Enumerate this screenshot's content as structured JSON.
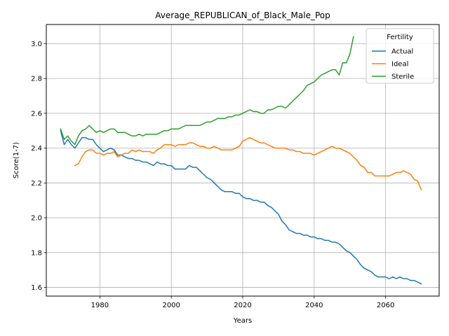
{
  "chart_data": {
    "type": "line",
    "title": "Average_REPUBLICAN_of_Black_Male_Pop",
    "xlabel": "Years",
    "ylabel": "Score(1-7)",
    "xlim": [
      1965,
      2075
    ],
    "ylim": [
      1.55,
      3.11
    ],
    "x_ticks": [
      1980,
      2000,
      2020,
      2040,
      2060
    ],
    "y_ticks": [
      1.6,
      1.8,
      2.0,
      2.2,
      2.4,
      2.6,
      2.8,
      3.0
    ],
    "x_tick_labels": [
      "1980",
      "2000",
      "2020",
      "2040",
      "2060"
    ],
    "y_tick_labels": [
      "1.6",
      "1.8",
      "2.0",
      "2.2",
      "2.4",
      "2.6",
      "2.8",
      "3.0"
    ],
    "grid": true,
    "legend_title": "Fertility",
    "legend_position": "upper right",
    "series": [
      {
        "name": "Actual",
        "color": "#1f77b4",
        "x": [
          1969,
          1970,
          1971,
          1972,
          1973,
          1974,
          1975,
          1976,
          1977,
          1978,
          1979,
          1980,
          1981,
          1982,
          1983,
          1984,
          1985,
          1986,
          1987,
          1988,
          1989,
          1990,
          1991,
          1992,
          1993,
          1994,
          1995,
          1996,
          1997,
          1998,
          1999,
          2000,
          2001,
          2002,
          2003,
          2004,
          2005,
          2006,
          2007,
          2008,
          2009,
          2010,
          2011,
          2012,
          2013,
          2014,
          2015,
          2016,
          2017,
          2018,
          2019,
          2020,
          2021,
          2022,
          2023,
          2024,
          2025,
          2026,
          2027,
          2028,
          2029,
          2030,
          2031,
          2032,
          2033,
          2034,
          2035,
          2036,
          2037,
          2038,
          2039,
          2040,
          2041,
          2042,
          2043,
          2044,
          2045,
          2046,
          2047,
          2048,
          2049,
          2050,
          2051,
          2052,
          2053,
          2054,
          2055,
          2056,
          2057,
          2058,
          2059,
          2060,
          2061,
          2062,
          2063,
          2064,
          2065,
          2066,
          2067,
          2068,
          2069,
          2070
        ],
        "y": [
          2.5,
          2.42,
          2.45,
          2.42,
          2.4,
          2.43,
          2.46,
          2.46,
          2.45,
          2.45,
          2.42,
          2.4,
          2.38,
          2.39,
          2.4,
          2.39,
          2.36,
          2.36,
          2.35,
          2.34,
          2.34,
          2.33,
          2.33,
          2.32,
          2.32,
          2.31,
          2.3,
          2.32,
          2.31,
          2.31,
          2.3,
          2.3,
          2.28,
          2.28,
          2.28,
          2.28,
          2.3,
          2.29,
          2.29,
          2.27,
          2.25,
          2.23,
          2.22,
          2.2,
          2.18,
          2.16,
          2.15,
          2.15,
          2.15,
          2.14,
          2.14,
          2.12,
          2.11,
          2.11,
          2.1,
          2.1,
          2.09,
          2.09,
          2.07,
          2.06,
          2.04,
          2.02,
          1.98,
          1.96,
          1.93,
          1.92,
          1.91,
          1.91,
          1.9,
          1.9,
          1.89,
          1.89,
          1.88,
          1.88,
          1.87,
          1.87,
          1.86,
          1.86,
          1.85,
          1.83,
          1.81,
          1.8,
          1.78,
          1.76,
          1.73,
          1.71,
          1.7,
          1.69,
          1.67,
          1.66,
          1.66,
          1.66,
          1.65,
          1.66,
          1.65,
          1.66,
          1.65,
          1.65,
          1.64,
          1.64,
          1.63,
          1.62
        ]
      },
      {
        "name": "Ideal",
        "color": "#ff7f0e",
        "x": [
          1973,
          1974,
          1975,
          1976,
          1977,
          1978,
          1979,
          1980,
          1981,
          1982,
          1983,
          1984,
          1985,
          1986,
          1987,
          1988,
          1989,
          1990,
          1991,
          1992,
          1993,
          1994,
          1995,
          1996,
          1997,
          1998,
          1999,
          2000,
          2001,
          2002,
          2003,
          2004,
          2005,
          2006,
          2007,
          2008,
          2009,
          2010,
          2011,
          2012,
          2013,
          2014,
          2015,
          2016,
          2017,
          2018,
          2019,
          2020,
          2021,
          2022,
          2023,
          2024,
          2025,
          2026,
          2027,
          2028,
          2029,
          2030,
          2031,
          2032,
          2033,
          2034,
          2035,
          2036,
          2037,
          2038,
          2039,
          2040,
          2041,
          2042,
          2043,
          2044,
          2045,
          2046,
          2047,
          2048,
          2049,
          2050,
          2051,
          2052,
          2053,
          2054,
          2055,
          2056,
          2057,
          2058,
          2059,
          2060,
          2061,
          2062,
          2063,
          2064,
          2065,
          2066,
          2067,
          2068,
          2069,
          2070
        ],
        "y": [
          2.3,
          2.31,
          2.35,
          2.38,
          2.39,
          2.39,
          2.37,
          2.37,
          2.36,
          2.37,
          2.37,
          2.38,
          2.35,
          2.36,
          2.37,
          2.37,
          2.39,
          2.38,
          2.39,
          2.38,
          2.38,
          2.38,
          2.37,
          2.39,
          2.4,
          2.42,
          2.42,
          2.42,
          2.41,
          2.42,
          2.42,
          2.42,
          2.43,
          2.43,
          2.42,
          2.41,
          2.41,
          2.4,
          2.4,
          2.41,
          2.4,
          2.39,
          2.39,
          2.39,
          2.39,
          2.4,
          2.41,
          2.44,
          2.45,
          2.46,
          2.45,
          2.44,
          2.43,
          2.43,
          2.42,
          2.41,
          2.4,
          2.4,
          2.4,
          2.4,
          2.39,
          2.39,
          2.38,
          2.38,
          2.37,
          2.37,
          2.37,
          2.36,
          2.37,
          2.38,
          2.39,
          2.4,
          2.41,
          2.4,
          2.4,
          2.39,
          2.38,
          2.37,
          2.35,
          2.33,
          2.3,
          2.29,
          2.26,
          2.26,
          2.24,
          2.24,
          2.24,
          2.24,
          2.24,
          2.25,
          2.26,
          2.26,
          2.27,
          2.26,
          2.25,
          2.22,
          2.21,
          2.16
        ]
      },
      {
        "name": "Sterile",
        "color": "#2ca02c",
        "x": [
          1969,
          1970,
          1971,
          1972,
          1973,
          1974,
          1975,
          1976,
          1977,
          1978,
          1979,
          1980,
          1981,
          1982,
          1983,
          1984,
          1985,
          1986,
          1987,
          1988,
          1989,
          1990,
          1991,
          1992,
          1993,
          1994,
          1995,
          1996,
          1997,
          1998,
          1999,
          2000,
          2001,
          2002,
          2003,
          2004,
          2005,
          2006,
          2007,
          2008,
          2009,
          2010,
          2011,
          2012,
          2013,
          2014,
          2015,
          2016,
          2017,
          2018,
          2019,
          2020,
          2021,
          2022,
          2023,
          2024,
          2025,
          2026,
          2027,
          2028,
          2029,
          2030,
          2031,
          2032,
          2033,
          2034,
          2035,
          2036,
          2037,
          2038,
          2039,
          2040,
          2041,
          2042,
          2043,
          2044,
          2045,
          2046,
          2047,
          2048,
          2049,
          2050,
          2051
        ],
        "y": [
          2.51,
          2.45,
          2.47,
          2.44,
          2.42,
          2.47,
          2.5,
          2.51,
          2.53,
          2.51,
          2.49,
          2.5,
          2.49,
          2.5,
          2.51,
          2.51,
          2.49,
          2.49,
          2.49,
          2.48,
          2.47,
          2.47,
          2.48,
          2.47,
          2.48,
          2.48,
          2.48,
          2.48,
          2.49,
          2.5,
          2.5,
          2.51,
          2.51,
          2.51,
          2.52,
          2.53,
          2.53,
          2.53,
          2.53,
          2.53,
          2.54,
          2.55,
          2.55,
          2.56,
          2.57,
          2.57,
          2.57,
          2.58,
          2.58,
          2.59,
          2.59,
          2.6,
          2.61,
          2.62,
          2.61,
          2.61,
          2.6,
          2.6,
          2.62,
          2.62,
          2.63,
          2.64,
          2.64,
          2.63,
          2.65,
          2.67,
          2.69,
          2.71,
          2.73,
          2.76,
          2.77,
          2.78,
          2.8,
          2.82,
          2.83,
          2.84,
          2.85,
          2.85,
          2.82,
          2.89,
          2.89,
          2.94,
          3.04
        ]
      }
    ]
  }
}
